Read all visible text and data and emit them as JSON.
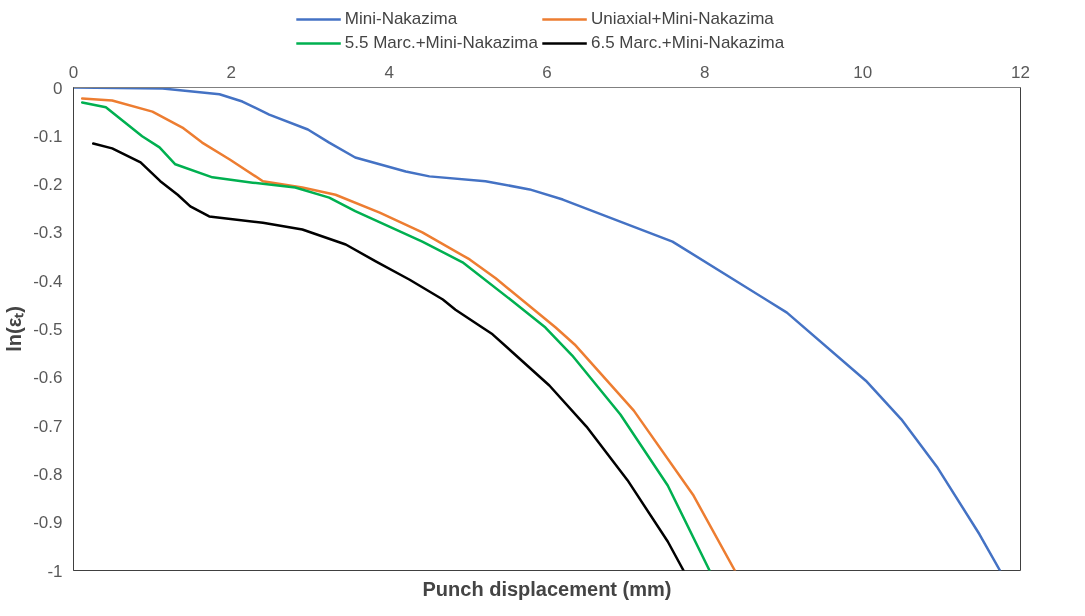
{
  "chart_data": {
    "type": "line",
    "xlabel": "Punch displacement (mm)",
    "ylabel": "ln(εₜ)",
    "xlim": [
      0,
      12
    ],
    "xticks": [
      0,
      2,
      4,
      6,
      8,
      10,
      12
    ],
    "ylim": [
      -1,
      0
    ],
    "yticks": [
      0,
      -0.1,
      -0.2,
      -0.3,
      -0.4,
      -0.5,
      -0.6,
      -0.7,
      -0.8,
      -0.9,
      -1
    ],
    "grid": false,
    "legend": "top",
    "line_style": "solid",
    "marker": "none",
    "series": [
      {
        "name": "Mini-Nakazima",
        "color": "#4472c4",
        "x": [
          0,
          1.13,
          1.85,
          2.14,
          2.48,
          2.97,
          3.24,
          3.57,
          4.21,
          4.51,
          5.22,
          5.78,
          6.2,
          7.59,
          9.04,
          10.04,
          10.49,
          10.94,
          11.48,
          11.74
        ],
        "values": [
          0,
          -0.002,
          -0.014,
          -0.029,
          -0.056,
          -0.087,
          -0.114,
          -0.145,
          -0.174,
          -0.184,
          -0.194,
          -0.211,
          -0.232,
          -0.319,
          -0.466,
          -0.607,
          -0.687,
          -0.785,
          -0.925,
          -1.0
        ]
      },
      {
        "name": "Uniaxial+Mini-Nakazima",
        "color": "#ed7d31",
        "x": [
          0.11,
          0.49,
          1.0,
          1.38,
          1.63,
          1.98,
          2.4,
          2.9,
          3.32,
          3.88,
          4.42,
          5.02,
          5.35,
          6.11,
          6.35,
          7.1,
          7.85,
          8.38
        ],
        "values": [
          -0.023,
          -0.027,
          -0.05,
          -0.083,
          -0.114,
          -0.149,
          -0.194,
          -0.207,
          -0.222,
          -0.259,
          -0.3,
          -0.356,
          -0.395,
          -0.497,
          -0.532,
          -0.669,
          -0.843,
          -1.0
        ]
      },
      {
        "name": "5.5 Marc.+Mini-Nakazima",
        "color": "#00b050",
        "x": [
          0.11,
          0.41,
          0.87,
          1.09,
          1.29,
          1.76,
          2.27,
          2.81,
          3.24,
          3.57,
          4.42,
          4.93,
          5.56,
          5.98,
          6.32,
          6.93,
          7.53,
          8.06
        ],
        "values": [
          -0.031,
          -0.041,
          -0.101,
          -0.124,
          -0.159,
          -0.186,
          -0.197,
          -0.207,
          -0.228,
          -0.256,
          -0.319,
          -0.362,
          -0.442,
          -0.497,
          -0.555,
          -0.677,
          -0.824,
          -1.0
        ]
      },
      {
        "name": "6.5 Marc.+Mini-Nakazima",
        "color": "#000000",
        "x": [
          0.25,
          0.49,
          0.85,
          1.1,
          1.32,
          1.48,
          1.72,
          2.4,
          2.9,
          3.45,
          3.83,
          4.26,
          4.68,
          4.84,
          5.18,
          5.31,
          6.03,
          6.5,
          7.02,
          7.53,
          7.73
        ],
        "values": [
          -0.116,
          -0.126,
          -0.155,
          -0.194,
          -0.222,
          -0.246,
          -0.267,
          -0.28,
          -0.294,
          -0.325,
          -0.36,
          -0.398,
          -0.439,
          -0.46,
          -0.497,
          -0.511,
          -0.617,
          -0.702,
          -0.813,
          -0.94,
          -1.0
        ]
      }
    ]
  }
}
